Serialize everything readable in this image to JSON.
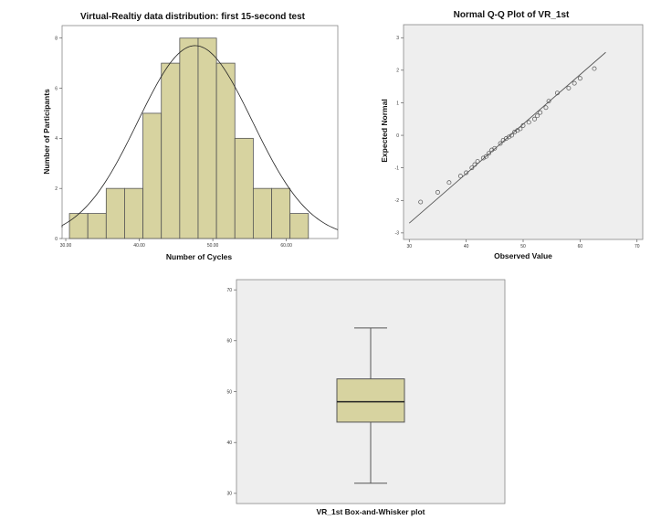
{
  "chart_data": [
    {
      "type": "bar",
      "subtype": "histogram",
      "title": "Virtual-Realtiy data distribution: first 15-second test",
      "xlabel": "Number of Cycles",
      "ylabel": "Number of Participants",
      "bin_edges": [
        30.5,
        33.0,
        35.5,
        38.0,
        40.5,
        43.0,
        45.5,
        48.0,
        50.5,
        53.0,
        55.5,
        58.0,
        60.5,
        63.0
      ],
      "values": [
        1,
        1,
        2,
        2,
        5,
        7,
        8,
        8,
        7,
        4,
        2,
        2,
        1
      ],
      "xlim": [
        29.5,
        67.0
      ],
      "ylim": [
        0,
        8.5
      ],
      "xticks": [
        30,
        40,
        50,
        60
      ],
      "xtick_labels": [
        "30.00",
        "40.00",
        "50.00",
        "60.00"
      ],
      "yticks": [
        0,
        2,
        4,
        6,
        8
      ],
      "ytick_labels": [
        "0",
        "2",
        "4",
        "6",
        "8"
      ],
      "normal_curve": {
        "mean": 47.6,
        "sd": 7.8,
        "peak": 7.7
      },
      "bar_color": "#d7d3a0",
      "background": "#ffffff",
      "grid": false
    },
    {
      "type": "scatter",
      "title": "Normal Q-Q Plot of VR_1st",
      "xlabel": "Observed Value",
      "ylabel": "Expected Normal",
      "xlim": [
        29,
        71
      ],
      "ylim": [
        -3.2,
        3.4
      ],
      "xticks": [
        30,
        40,
        50,
        60,
        70
      ],
      "xtick_labels": [
        "30",
        "40",
        "50",
        "60",
        "70"
      ],
      "yticks": [
        -3,
        -2,
        -1,
        0,
        1,
        2,
        3
      ],
      "ytick_labels": [
        "-3",
        "-2",
        "-1",
        "0",
        "1",
        "2",
        "3"
      ],
      "points": [
        [
          32,
          -2.05
        ],
        [
          35,
          -1.75
        ],
        [
          37,
          -1.45
        ],
        [
          39,
          -1.25
        ],
        [
          40,
          -1.15
        ],
        [
          41,
          -1.0
        ],
        [
          41.5,
          -0.9
        ],
        [
          42,
          -0.8
        ],
        [
          43,
          -0.7
        ],
        [
          43.5,
          -0.65
        ],
        [
          44,
          -0.55
        ],
        [
          44.5,
          -0.45
        ],
        [
          45,
          -0.4
        ],
        [
          46,
          -0.25
        ],
        [
          46.5,
          -0.15
        ],
        [
          47,
          -0.1
        ],
        [
          47.5,
          -0.05
        ],
        [
          48,
          0.0
        ],
        [
          48.5,
          0.1
        ],
        [
          49,
          0.15
        ],
        [
          49.5,
          0.2
        ],
        [
          50,
          0.3
        ],
        [
          51,
          0.4
        ],
        [
          52,
          0.5
        ],
        [
          52.5,
          0.6
        ],
        [
          53,
          0.7
        ],
        [
          54,
          0.85
        ],
        [
          54.5,
          1.05
        ],
        [
          56,
          1.3
        ],
        [
          58,
          1.45
        ],
        [
          59,
          1.6
        ],
        [
          60,
          1.75
        ],
        [
          62.5,
          2.05
        ]
      ],
      "reference_line": [
        [
          30,
          -2.7
        ],
        [
          64.5,
          2.55
        ]
      ],
      "background": "#eeeeee",
      "grid": false
    },
    {
      "type": "box",
      "xlabel": "VR_1st Box-and-Whisker plot",
      "ylim": [
        28,
        72
      ],
      "yticks": [
        30,
        40,
        50,
        60,
        70
      ],
      "ytick_labels": [
        "30",
        "40",
        "50",
        "60",
        "70"
      ],
      "min": 32,
      "q1": 44,
      "median": 48,
      "q3": 52.5,
      "max": 62.5,
      "box_color": "#d7d3a0",
      "background": "#eeeeee",
      "grid": false
    }
  ]
}
